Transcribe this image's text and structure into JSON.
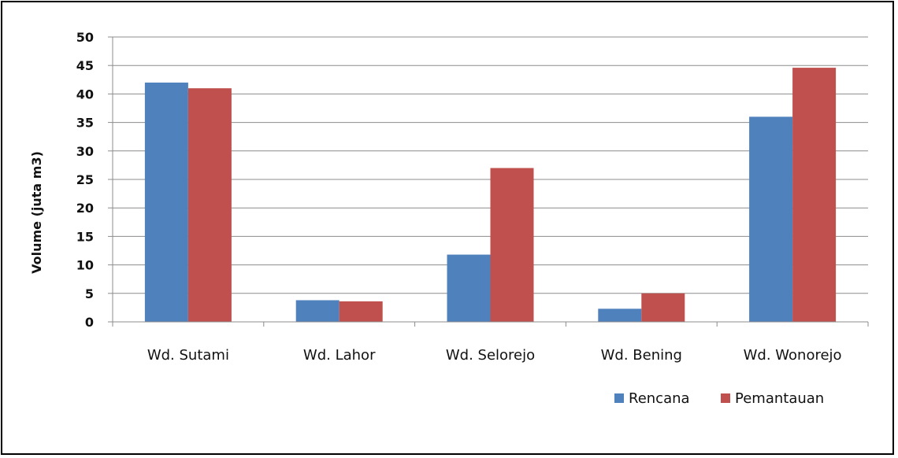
{
  "chart_data": {
    "type": "bar",
    "title": "",
    "xlabel": "",
    "ylabel": "Volume (juta m3)",
    "ylim": [
      0,
      50
    ],
    "yticks": [
      0,
      5,
      10,
      15,
      20,
      25,
      30,
      35,
      40,
      45,
      50
    ],
    "grid": true,
    "legend_position": "bottom-right",
    "categories": [
      "Wd. Sutami",
      "Wd. Lahor",
      "Wd. Selorejo",
      "Wd. Bening",
      "Wd. Wonorejo"
    ],
    "series": [
      {
        "name": "Rencana",
        "color": "#4F81BD",
        "values": [
          42,
          3.8,
          11.8,
          2.3,
          36
        ]
      },
      {
        "name": "Pemantauan",
        "color": "#C0504D",
        "values": [
          41,
          3.6,
          27,
          5,
          44.6
        ]
      }
    ]
  }
}
